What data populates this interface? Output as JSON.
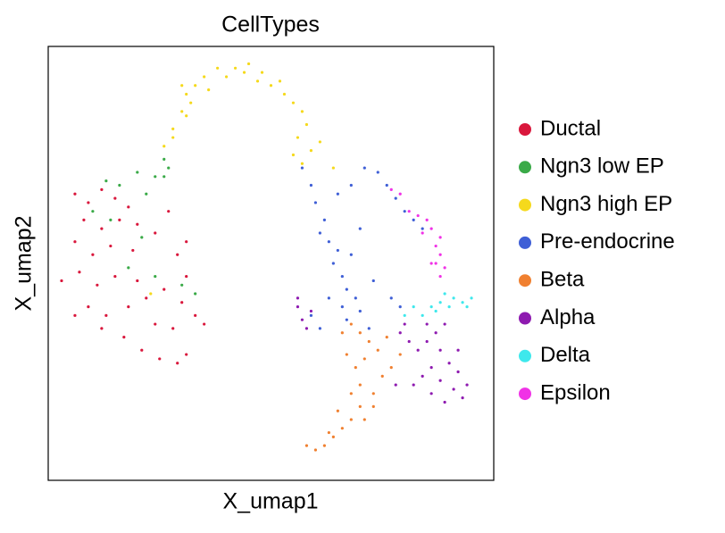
{
  "chart_data": {
    "type": "scatter",
    "title": "CellTypes",
    "x_label": "X_umap1",
    "y_label": "X_umap2",
    "xlim": [
      0,
      100
    ],
    "ylim": [
      0,
      100
    ],
    "legend": "right",
    "series": [
      {
        "name": "Ductal",
        "color": "#d9173c",
        "x": [
          6,
          9,
          12,
          15,
          18,
          8,
          12,
          16,
          20,
          6,
          10,
          14,
          19,
          24,
          27,
          7,
          11,
          15,
          9,
          13,
          18,
          22,
          26,
          30,
          33,
          35,
          17,
          21,
          25,
          29,
          31,
          12,
          6,
          29,
          31,
          31,
          28,
          24,
          20,
          3
        ],
        "y": [
          66,
          64,
          67,
          65,
          63,
          60,
          58,
          60,
          59,
          55,
          52,
          54,
          53,
          57,
          62,
          48,
          45,
          47,
          40,
          38,
          40,
          42,
          44,
          41,
          38,
          36,
          33,
          30,
          28,
          27,
          29,
          35,
          38,
          52,
          55,
          47,
          35,
          36,
          46,
          46
        ]
      },
      {
        "name": "Ngn3 low EP",
        "color": "#3aaa48",
        "x": [
          27,
          24,
          20,
          16,
          13,
          10,
          22,
          26,
          18,
          30,
          33,
          24,
          21,
          14,
          26
        ],
        "y": [
          72,
          70,
          71,
          68,
          69,
          62,
          66,
          74,
          49,
          45,
          43,
          47,
          56,
          60,
          70
        ]
      },
      {
        "name": "Ngn3 high EP",
        "color": "#f5d91c",
        "x": [
          26,
          28,
          30,
          31,
          33,
          35,
          38,
          42,
          44,
          47,
          50,
          53,
          55,
          57,
          58,
          56,
          55,
          57,
          59,
          61,
          32,
          36,
          40,
          45,
          48,
          52,
          28,
          31,
          23,
          64,
          30
        ],
        "y": [
          77,
          81,
          85,
          89,
          91,
          93,
          95,
          95,
          94,
          92,
          91,
          89,
          87,
          85,
          82,
          79,
          75,
          73,
          76,
          78,
          87,
          90,
          93,
          96,
          94,
          92,
          79,
          84,
          43,
          72,
          91
        ]
      },
      {
        "name": "Pre-endocrine",
        "color": "#3f5fd6",
        "x": [
          57,
          59,
          60,
          62,
          61,
          63,
          65,
          64,
          66,
          67,
          69,
          66,
          70,
          63,
          59,
          61,
          65,
          68,
          71,
          74,
          76,
          78,
          80,
          82,
          84,
          77,
          79,
          73,
          68,
          70,
          67,
          72
        ],
        "y": [
          72,
          68,
          64,
          60,
          57,
          55,
          53,
          50,
          47,
          44,
          42,
          40,
          39,
          42,
          38,
          35,
          66,
          68,
          72,
          71,
          68,
          65,
          62,
          60,
          58,
          42,
          40,
          46,
          52,
          58,
          37,
          35
        ]
      },
      {
        "name": "Beta",
        "color": "#f08030",
        "x": [
          66,
          68,
          70,
          72,
          74,
          71,
          69,
          70,
          68,
          70,
          68,
          66,
          64,
          62,
          60,
          63,
          71,
          73,
          75,
          77,
          79,
          76,
          67,
          73,
          65,
          58
        ],
        "y": [
          34,
          36,
          34,
          32,
          30,
          28,
          26,
          22,
          20,
          17,
          14,
          12,
          10,
          8,
          7,
          11,
          14,
          20,
          24,
          26,
          29,
          33,
          29,
          17,
          16,
          8
        ]
      },
      {
        "name": "Alpha",
        "color": "#8e1ab0",
        "x": [
          56,
          57,
          58,
          56,
          59,
          79,
          81,
          83,
          85,
          87,
          88,
          86,
          84,
          82,
          86,
          89,
          91,
          93,
          94,
          92,
          90,
          88,
          80,
          85,
          89,
          92,
          78
        ],
        "y": [
          40,
          37,
          35,
          42,
          39,
          34,
          32,
          30,
          32,
          34,
          30,
          26,
          24,
          22,
          20,
          18,
          21,
          19,
          22,
          25,
          27,
          23,
          36,
          36,
          36,
          30,
          22
        ]
      },
      {
        "name": "Delta",
        "color": "#3ee8ec",
        "x": [
          82,
          84,
          86,
          88,
          90,
          91,
          93,
          95,
          87,
          89,
          80,
          94
        ],
        "y": [
          40,
          38,
          40,
          41,
          40,
          42,
          41,
          42,
          39,
          43,
          38,
          40
        ]
      },
      {
        "name": "Epsilon",
        "color": "#f032e6",
        "x": [
          77,
          79,
          81,
          83,
          85,
          86,
          88,
          87,
          88,
          87,
          89,
          88,
          86,
          84
        ],
        "y": [
          67,
          66,
          62,
          61,
          60,
          58,
          56,
          54,
          52,
          50,
          49,
          47,
          50,
          57
        ]
      }
    ]
  }
}
